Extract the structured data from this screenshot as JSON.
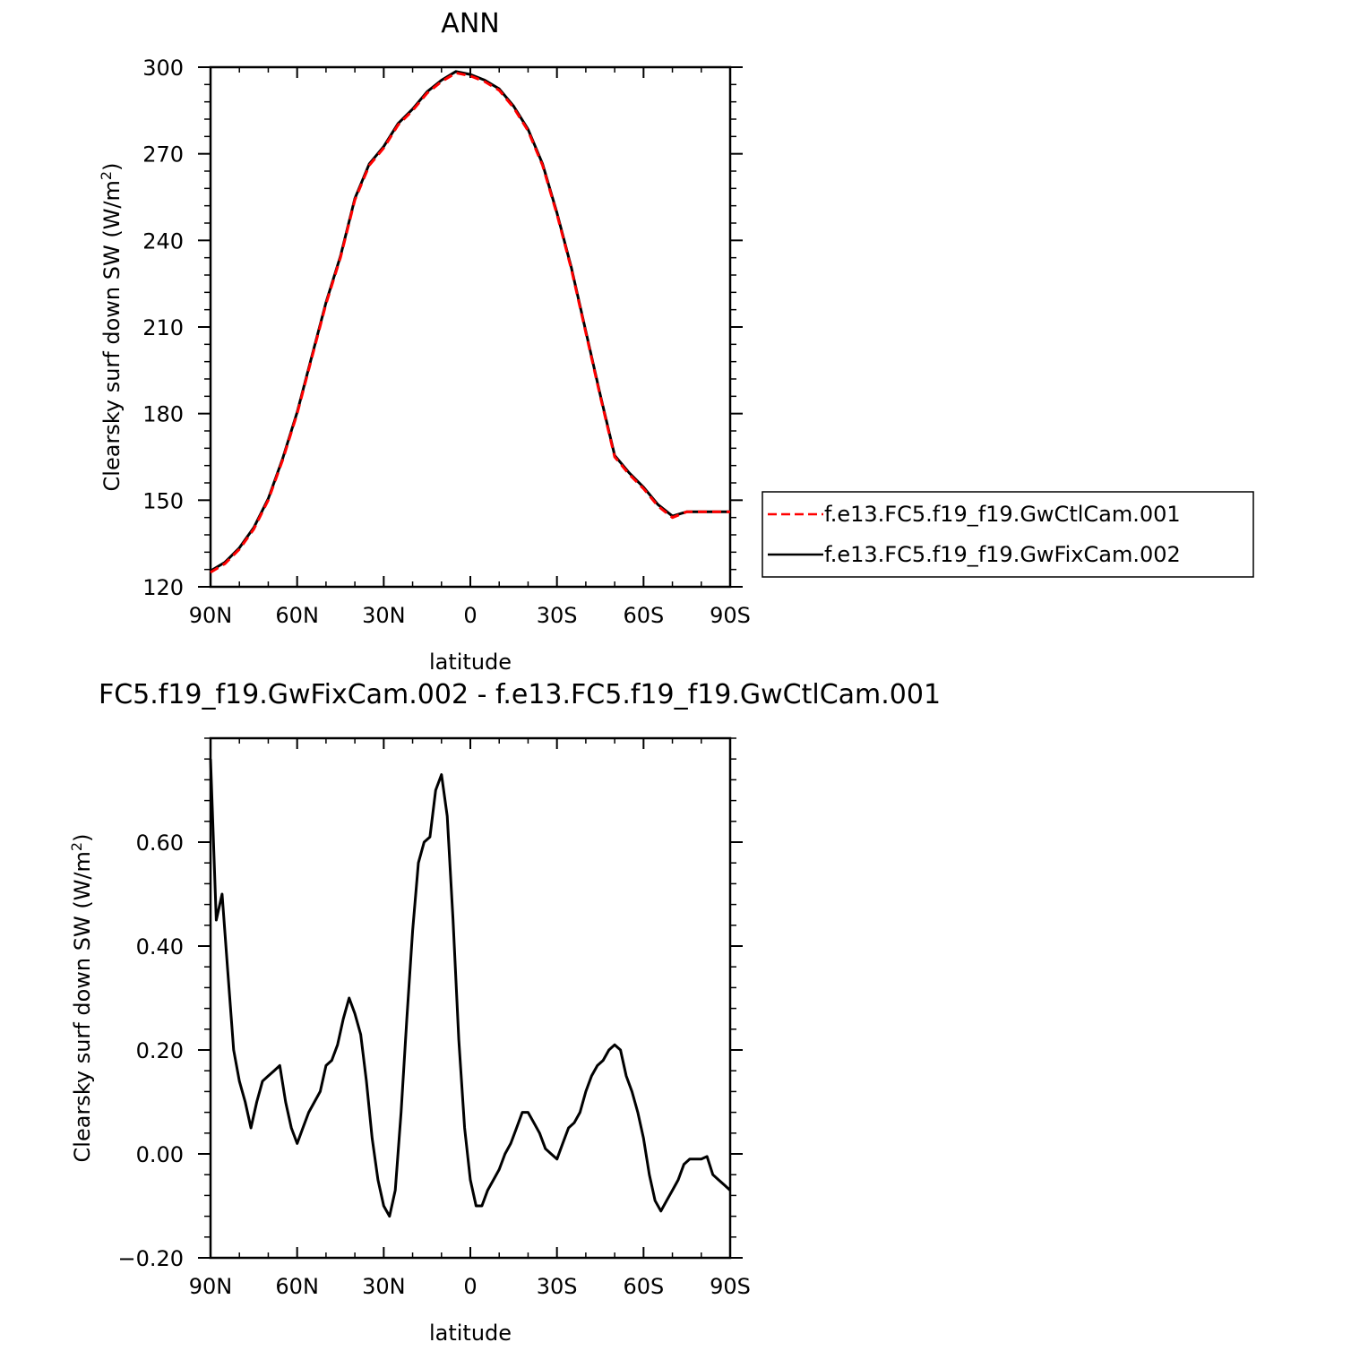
{
  "chart_data": [
    {
      "type": "line",
      "title": "ANN",
      "xlabel": "latitude",
      "ylabel_main": "Clearsky surf down SW (W/m",
      "ylabel_sup": "2",
      "ylabel_end": ")",
      "xlim": [
        90,
        -90
      ],
      "ylim": [
        120,
        300
      ],
      "x_ticks": [
        {
          "value": 90,
          "label": "90N"
        },
        {
          "value": 60,
          "label": "60N"
        },
        {
          "value": 30,
          "label": "30N"
        },
        {
          "value": 0,
          "label": "0"
        },
        {
          "value": -30,
          "label": "30S"
        },
        {
          "value": -60,
          "label": "60S"
        },
        {
          "value": -90,
          "label": "90S"
        }
      ],
      "y_ticks": [
        {
          "value": 120,
          "label": "120"
        },
        {
          "value": 150,
          "label": "150"
        },
        {
          "value": 180,
          "label": "180"
        },
        {
          "value": 210,
          "label": "210"
        },
        {
          "value": 240,
          "label": "240"
        },
        {
          "value": 270,
          "label": "270"
        },
        {
          "value": 300,
          "label": "300"
        }
      ],
      "legend_position": "right",
      "series": [
        {
          "name": "f.e13.FC5.f19_f19.GwCtlCam.001",
          "color": "#ff0000",
          "dash": "dashed",
          "x": [
            90,
            85,
            80,
            75,
            70,
            65,
            60,
            55,
            50,
            45,
            40,
            35,
            30,
            25,
            20,
            15,
            10,
            5,
            0,
            -5,
            -10,
            -15,
            -20,
            -25,
            -30,
            -35,
            -40,
            -45,
            -50,
            -55,
            -60,
            -65,
            -70,
            -75,
            -80,
            -85,
            -90
          ],
          "y": [
            125,
            128,
            133,
            140,
            150,
            164,
            180,
            199,
            218,
            234,
            254,
            266,
            272,
            280,
            285,
            291,
            295,
            298,
            297,
            295,
            292,
            286,
            278,
            266,
            249,
            230,
            208,
            186,
            165,
            159,
            154,
            148,
            144,
            146,
            146,
            146,
            146
          ]
        },
        {
          "name": "f.e13.FC5.f19_f19.GwFixCam.002",
          "color": "#000000",
          "dash": "solid",
          "x": [
            90,
            85,
            80,
            75,
            70,
            65,
            60,
            55,
            50,
            45,
            40,
            35,
            30,
            25,
            20,
            15,
            10,
            5,
            0,
            -5,
            -10,
            -15,
            -20,
            -25,
            -30,
            -35,
            -40,
            -45,
            -50,
            -55,
            -60,
            -65,
            -70,
            -75,
            -80,
            -85,
            -90
          ],
          "y": [
            125.5,
            128.5,
            133.5,
            140.5,
            150.5,
            164.5,
            180.5,
            199.5,
            218.5,
            234.5,
            254.5,
            266.5,
            272.5,
            280.5,
            285.5,
            291.5,
            295.5,
            298.5,
            297.5,
            295.5,
            292.5,
            286.5,
            278.5,
            266.5,
            249.5,
            230.5,
            208.5,
            186.5,
            165.5,
            159.5,
            154.5,
            148.5,
            144.5,
            146,
            146,
            146,
            146
          ]
        }
      ]
    },
    {
      "type": "line",
      "title": "FC5.f19_f19.GwFixCam.002 - f.e13.FC5.f19_f19.GwCtlCam.001",
      "xlabel": "latitude",
      "ylabel_main": "Clearsky surf down SW (W/m",
      "ylabel_sup": "2",
      "ylabel_end": ")",
      "xlim": [
        90,
        -90
      ],
      "ylim": [
        -0.2,
        0.8
      ],
      "x_ticks": [
        {
          "value": 90,
          "label": "90N"
        },
        {
          "value": 60,
          "label": "60N"
        },
        {
          "value": 30,
          "label": "30N"
        },
        {
          "value": 0,
          "label": "0"
        },
        {
          "value": -30,
          "label": "30S"
        },
        {
          "value": -60,
          "label": "60S"
        },
        {
          "value": -90,
          "label": "90S"
        }
      ],
      "y_ticks": [
        {
          "value": -0.2,
          "label": "−0.20"
        },
        {
          "value": 0.0,
          "label": "0.00"
        },
        {
          "value": 0.2,
          "label": "0.20"
        },
        {
          "value": 0.4,
          "label": "0.40"
        },
        {
          "value": 0.6,
          "label": "0.60"
        }
      ],
      "series": [
        {
          "name": "",
          "color": "#000000",
          "dash": "solid",
          "x": [
            90,
            88,
            86,
            84,
            82,
            80,
            78,
            76,
            74,
            72,
            70,
            68,
            66,
            64,
            62,
            60,
            58,
            56,
            54,
            52,
            50,
            48,
            46,
            44,
            42,
            40,
            38,
            36,
            34,
            32,
            30,
            28,
            26,
            24,
            22,
            20,
            18,
            16,
            14,
            12,
            10,
            8,
            6,
            4,
            2,
            0,
            -2,
            -4,
            -6,
            -8,
            -10,
            -12,
            -14,
            -16,
            -18,
            -20,
            -22,
            -24,
            -26,
            -28,
            -30,
            -32,
            -34,
            -36,
            -38,
            -40,
            -42,
            -44,
            -46,
            -48,
            -50,
            -52,
            -54,
            -56,
            -58,
            -60,
            -62,
            -64,
            -66,
            -68,
            -70,
            -72,
            -74,
            -76,
            -78,
            -80,
            -82,
            -84,
            -86,
            -88,
            -90
          ],
          "y": [
            0.76,
            0.45,
            0.5,
            0.35,
            0.2,
            0.14,
            0.1,
            0.05,
            0.1,
            0.14,
            0.15,
            0.16,
            0.17,
            0.1,
            0.05,
            0.02,
            0.05,
            0.08,
            0.1,
            0.12,
            0.17,
            0.18,
            0.21,
            0.26,
            0.3,
            0.27,
            0.23,
            0.14,
            0.03,
            -0.05,
            -0.1,
            -0.12,
            -0.07,
            0.08,
            0.26,
            0.43,
            0.56,
            0.6,
            0.61,
            0.7,
            0.73,
            0.65,
            0.45,
            0.22,
            0.05,
            -0.05,
            -0.1,
            -0.1,
            -0.07,
            -0.05,
            -0.03,
            0.0,
            0.02,
            0.05,
            0.08,
            0.08,
            0.06,
            0.04,
            0.01,
            0.0,
            -0.01,
            0.02,
            0.05,
            0.06,
            0.08,
            0.12,
            0.15,
            0.17,
            0.18,
            0.2,
            0.21,
            0.2,
            0.15,
            0.12,
            0.08,
            0.03,
            -0.04,
            -0.09,
            -0.11,
            -0.09,
            -0.07,
            -0.05,
            -0.02,
            -0.01,
            -0.01,
            -0.01,
            -0.005,
            -0.04,
            -0.05,
            -0.06,
            -0.07
          ]
        }
      ]
    }
  ]
}
